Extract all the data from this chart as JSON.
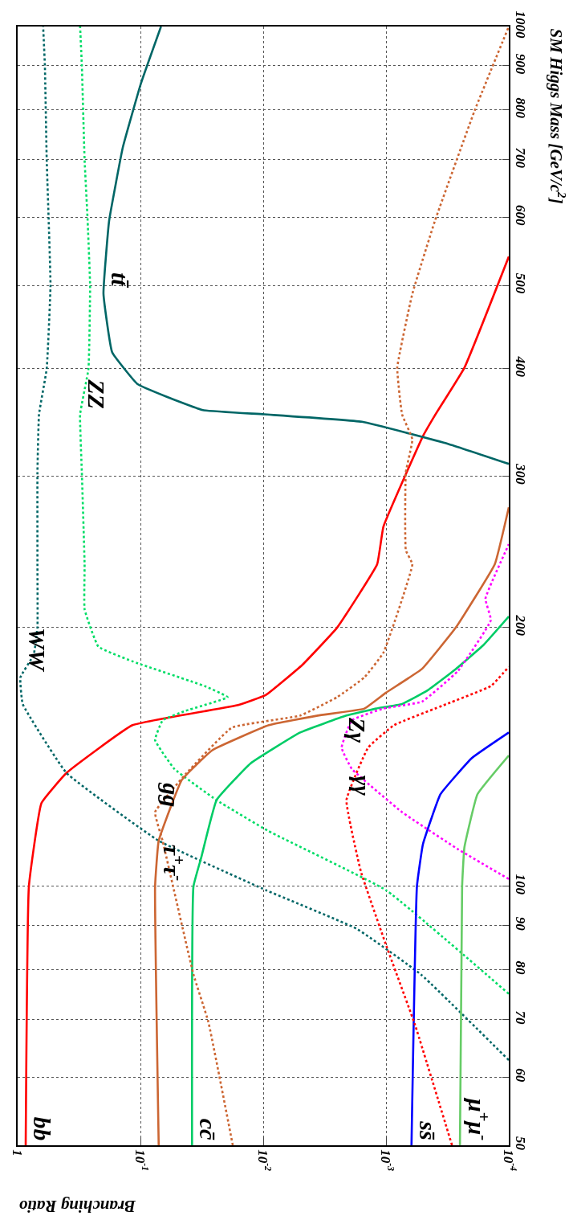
{
  "chart_data": {
    "type": "line",
    "ylabel": "SM Higgs Mass [GeV/c$^{2}$]",
    "xlabel": "Branching Ratio",
    "ylim": [
      50,
      1000
    ],
    "yticks": [
      50,
      60,
      70,
      80,
      90,
      100,
      200,
      300,
      400,
      500,
      600,
      700,
      800,
      900,
      1000
    ],
    "xlim": [
      1,
      0.0001
    ],
    "xticks": [
      1,
      {
        "value": 0.1,
        "label": "10$^{-1}$"
      },
      {
        "value": 0.01,
        "label": "10$^{-2}$"
      },
      {
        "value": 0.001,
        "label": "10$^{-3}$"
      },
      {
        "value": 0.0001,
        "label": "10$^{-4}$"
      }
    ],
    "log": "xy",
    "grid": true,
    "legend": false,
    "series": [
      {
        "name": "bb",
        "color": "#ff0000",
        "line_style": "solid",
        "values": [
          50,
          100,
          125,
          135.5,
          154,
          162.5,
          167,
          181,
          200,
          237,
          262,
          334,
          353,
          401,
          540
        ],
        "x": [
          0.86,
          0.81,
          0.64,
          0.4,
          0.116,
          0.016,
          0.0095,
          0.0048,
          0.0025,
          0.00118,
          0.00105,
          0.0005,
          0.0004,
          0.00023,
          0.0001
        ]
      },
      {
        "name": "WW",
        "color": "#006666",
        "line_style": "dotted",
        "values": [
          62.8,
          79,
          89.3,
          99,
          113,
          135.5,
          163,
          175,
          186,
          200,
          237,
          303,
          354,
          400,
          500,
          600,
          700,
          900,
          1000
        ],
        "x": [
          0.0001,
          0.00052,
          0.00174,
          0.0095,
          0.071,
          0.4,
          0.91,
          0.95,
          0.74,
          0.69,
          0.69,
          0.69,
          0.67,
          0.58,
          0.54,
          0.56,
          0.58,
          0.6,
          0.62
        ]
      },
      {
        "name": "ZZ",
        "color": "#00dd66",
        "line_style": "dotted",
        "values": [
          75,
          99,
          116,
          126,
          137,
          148,
          156,
          160,
          166,
          171,
          182,
          190,
          210,
          237,
          303,
          354,
          400,
          500,
          600,
          700,
          900,
          1000
        ],
        "x": [
          0.0001,
          0.001,
          0.0091,
          0.024,
          0.053,
          0.076,
          0.066,
          0.043,
          0.0195,
          0.03,
          0.108,
          0.22,
          0.285,
          0.285,
          0.3,
          0.31,
          0.265,
          0.257,
          0.27,
          0.285,
          0.3,
          0.31
        ]
      },
      {
        "name": "tt̄",
        "color": "#006666",
        "line_style": "solid",
        "values": [
          310,
          327,
          347,
          354,
          358,
          371,
          384,
          418,
          489,
          594,
          724,
          859,
          1000
        ],
        "x": [
          0.0001,
          0.00031,
          0.00157,
          0.0098,
          0.031,
          0.061,
          0.106,
          0.17,
          0.2,
          0.18,
          0.139,
          0.099,
          0.068
        ]
      },
      {
        "name": "τ$^{+}$τ$^{-}$",
        "color": "#cc6633",
        "line_style": "solid",
        "values": [
          50,
          100,
          113,
          133,
          144,
          154,
          158,
          161,
          168,
          179,
          200,
          237,
          276
        ],
        "x": [
          0.071,
          0.076,
          0.071,
          0.046,
          0.026,
          0.009,
          0.0036,
          0.0015,
          0.001,
          0.00051,
          0.00027,
          0.00013,
          0.0001
        ]
      },
      {
        "name": "cc̄",
        "color": "#00cc66",
        "line_style": "solid",
        "values": [
          50,
          100,
          108,
          126,
          139,
          151,
          158,
          161,
          163,
          169,
          179,
          191,
          206
        ],
        "x": [
          0.038,
          0.037,
          0.032,
          0.024,
          0.0127,
          0.005,
          0.0021,
          0.0012,
          0.00074,
          0.00046,
          0.00027,
          0.00016,
          0.0001
        ]
      },
      {
        "name": "gg",
        "color": "#cc6633",
        "line_style": "dotted",
        "values": [
          50,
          69.6,
          79,
          113,
          122,
          135,
          153,
          158,
          166,
          175,
          187,
          237,
          246,
          303,
          331,
          354,
          401,
          489,
          594,
          798,
          1000
        ],
        "x": [
          0.0177,
          0.028,
          0.037,
          0.066,
          0.076,
          0.043,
          0.018,
          0.005,
          0.0025,
          0.0015,
          0.00105,
          0.00061,
          0.00069,
          0.00069,
          0.00061,
          0.00074,
          0.00081,
          0.00061,
          0.0004,
          0.00019,
          0.0001
        ]
      },
      {
        "name": "ss̄",
        "color": "#0000ff",
        "line_style": "solid",
        "values": [
          50,
          100,
          112,
          128,
          141,
          151
        ],
        "x": [
          0.00062,
          0.00056,
          0.0005,
          0.00036,
          0.0002,
          0.0001
        ]
      },
      {
        "name": "μ$^{+}$μ$^{-}$",
        "color": "#66cc66",
        "line_style": "solid",
        "values": [
          50,
          100,
          111,
          128,
          142
        ],
        "x": [
          0.00025,
          0.00024,
          0.00023,
          0.00018,
          0.0001
        ]
      },
      {
        "name": "γγ",
        "color": "#ff0000",
        "line_style": "dotted",
        "values": [
          50,
          69,
          85.5,
          104,
          126,
          145,
          154,
          163,
          171,
          180
        ],
        "x": [
          0.00029,
          0.00058,
          0.001,
          0.0016,
          0.0021,
          0.0014,
          0.00086,
          0.00032,
          0.00014,
          0.0001
        ]
      },
      {
        "name": "Zγ",
        "color": "#ff00ff",
        "line_style": "dotted",
        "values": [
          102,
          110.5,
          122,
          137,
          145,
          156,
          161,
          164,
          178,
          204,
          216,
          250
        ],
        "x": [
          0.0001,
          0.00026,
          0.00074,
          0.0019,
          0.0023,
          0.0019,
          0.00105,
          0.00051,
          0.00026,
          0.00014,
          0.000155,
          0.0001
        ]
      }
    ]
  }
}
